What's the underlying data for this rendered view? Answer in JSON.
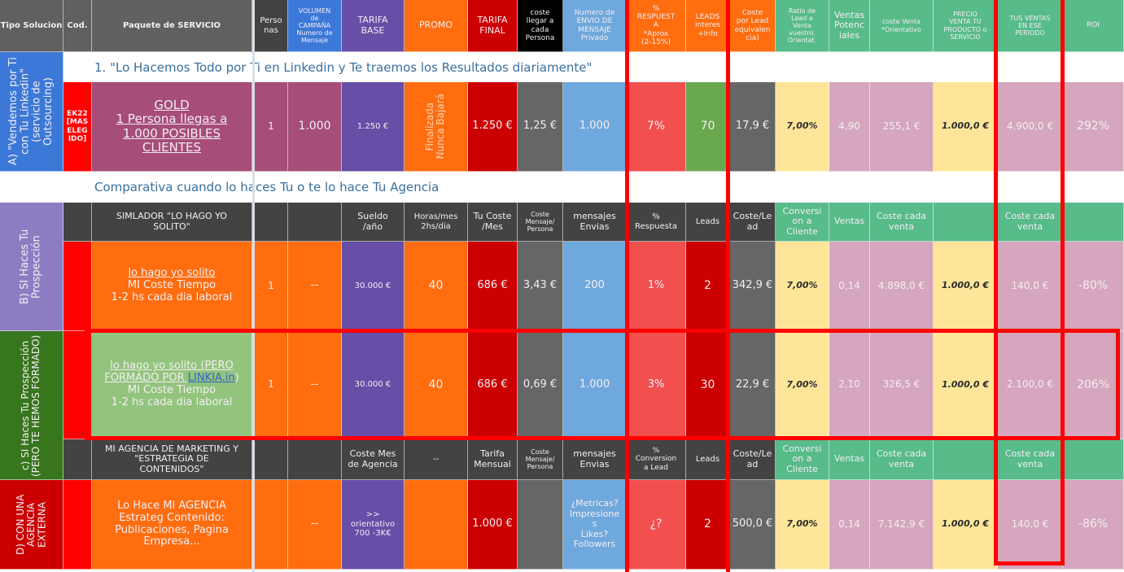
{
  "header": {
    "tipo_solucion": "Tipo Solucion",
    "cod": "Cod.",
    "paquete": "Paquete de SERVICIO",
    "personas": "Perso\nnas",
    "volumen": "VOLUMEN\nde\nCAMPAÑA\nNumero de\nMensaje",
    "tarifa_base": "TARIFA\nBASE",
    "promo": "PROMO",
    "tarifa_final": "TARIFA\nFINAL",
    "coste_llegar": "coste\nllegar a\ncada\nPersona",
    "numero_envio": "Numero de\nENVIO DE\nMENSAJE\nPrivado",
    "respuesta": "%\nRESPUEST\nA\n*Aprox\n(2-15%)",
    "leads": "LEADS\ninteres\n+Info",
    "coste_lead": "Coste\npor Lead\nequivalen\ncia)",
    "ratio": "Ratio de\nLead a\nVenta\nvuestro.\nOrientat.",
    "ventas_pot": "Ventas\nPotenc\niales",
    "coste_venta": "coste Venta\n*Orientativo",
    "precio_venta": "PRECIO\nVENTA TU\nPRODUCTO o\nSERVICIO",
    "tus_ventas": "TUS VENTAS\nEN ESE\nPERIODO",
    "roi": "ROI"
  },
  "section_a": {
    "label": "A) \"Vendemos por Ti con Tu Linkedin\" (servicio de Outsourcing)",
    "banner": "1. \"Lo Hacemos Todo por  Ti en Linkedin y Te traemos los Resultados diariamente\"",
    "row": {
      "cod": "EK22\n[MAS\nELEG\nIDO]",
      "paquete_title": "GOLD",
      "paquete_text": "1 Persona llegas a\n1.000 POSIBLES\nCLIENTES",
      "personas": "1",
      "volumen": "1.000",
      "tarifa_base": "1.250 €",
      "promo": "Finalizada\nNunca Bajará",
      "tarifa_final": "1.250 €",
      "coste_llegar": "1,25 €",
      "numero_envio": "1.000",
      "respuesta": "7%",
      "leads": "70",
      "coste_lead": "17,9 €",
      "ratio": "7,00%",
      "ventas_pot": "4,90",
      "coste_venta": "255,1 €",
      "precio_venta": "1.000,0 €",
      "tus_ventas": "4.900,0 €",
      "roi": "292%"
    }
  },
  "comparativa_banner": "Comparativa cuando lo haces Tu o te lo hace Tu Agencia",
  "section_b": {
    "label": "B) SI Haces Tu Prospección",
    "subheader": {
      "paquete": "SIMLADOR \"LO HAGO YO\nSOLITO\"",
      "sueldo": "Sueldo\n/año",
      "horas": "Horas/mes\n2hs/dia",
      "tu_coste": "Tu Coste\n/Mes",
      "coste_mensaje": "Coste\nMensaje/\nPersona",
      "mensajes": "mensajes\nEnvias",
      "respuesta": "%\nRespuesta",
      "leads": "Leads",
      "coste_lead": "Coste/Le\nad",
      "conversion": "Conversi\non a\nCliente",
      "ventas": "Ventas",
      "coste_cada_venta": "Coste cada\nventa",
      "coste_cada_venta_2": "Coste cada\nventa"
    },
    "row": {
      "paquete_title": "lo hago yo solito",
      "paquete_text": "MI Coste Tiempo\n1-2 hs cada dia laboral",
      "personas": "1",
      "volumen": "--",
      "sueldo": "30.000 €",
      "horas": "40",
      "tu_coste": "686 €",
      "coste_mensaje": "3,43 €",
      "mensajes": "200",
      "respuesta": "1%",
      "leads": "2",
      "coste_lead": "342,9 €",
      "conversion": "7,00%",
      "ventas": "0,14",
      "coste_venta": "4.898,0 €",
      "precio_venta": "1.000,0 €",
      "tus_ventas": "140,0 €",
      "roi": "-80%"
    }
  },
  "section_c": {
    "label": "c) SI Haces Tu Prospección (PERO TE HEMOS FORMADO)",
    "row": {
      "paquete_title_a": "lo hago yo solito (PERO",
      "paquete_title_b": "FORMADO POR ",
      "paquete_link": "LINKIA.in",
      "paquete_title_c": ")",
      "paquete_text": "MI Coste Tiempo\n1-2 hs cada dia laboral",
      "personas": "1",
      "volumen": "--",
      "sueldo": "30.000 €",
      "horas": "40",
      "tu_coste": "686 €",
      "coste_mensaje": "0,69 €",
      "mensajes": "1.000",
      "respuesta": "3%",
      "leads": "30",
      "coste_lead": "22,9 €",
      "conversion": "7,00%",
      "ventas": "2,10",
      "coste_venta": "326,5 €",
      "precio_venta": "1.000,0 €",
      "tus_ventas": "2.100,0 €",
      "roi": "206%"
    }
  },
  "section_d": {
    "label": "D) CON UNA AGENCIA EXTERNA",
    "subheader": {
      "paquete": "MI AGENCIA DE MARKETING Y\n\"ESTRATEGIA DE\nCONTENIDOS\"",
      "coste_mes": "Coste Mes\nde Agencia",
      "dash": "--",
      "tarifa": "Tarifa\nMensual",
      "coste_mensaje": "Coste\nMensaje/\nPersona",
      "mensajes": "mensajes\nEnvias",
      "conversion_lead": "%\nConversion\na Lead",
      "leads": "Leads",
      "coste_lead": "Coste/Le\nad",
      "conversion": "Conversi\non a\nCliente",
      "ventas": "Ventas",
      "coste_cada_venta": "Coste cada\nventa",
      "coste_cada_venta_2": "Coste cada\nventa"
    },
    "row": {
      "paquete_text": "Lo Hace MI AGENCIA\nEstrateg Contenido:\nPublicaciones, Pagina\nEmpresa...",
      "volumen": "--",
      "coste_mes": ">>\norientativo\n700 -3K€",
      "tarifa": "1.000 €",
      "mensajes": "¿Metricas?\nImpresione\ns\nLikes?\nFollowers",
      "conversion_lead": "¿?",
      "leads": "2",
      "coste_lead": "500,0 €",
      "conversion": "7,00%",
      "ventas": "0,14",
      "coste_venta": "7.142,9 €",
      "precio_venta": "1.000,0 €",
      "tus_ventas": "140,0 €",
      "roi": "-86%"
    }
  },
  "colors": {
    "header_gray": "#606060",
    "dark_gray": "#434343",
    "blue": "#3c78d8",
    "purple": "#674ea7",
    "orange": "#ff6d0f",
    "red": "#cc0000",
    "bright_red": "#ff0000",
    "black": "#000000",
    "light_blue": "#6fa8dc",
    "salmon": "#f24f4f",
    "green": "#6aa84f",
    "mint": "#57bb8a",
    "yellow": "#ffe599",
    "pink": "#d5a6bd",
    "magenta": "#a64d79",
    "lavender": "#8e7cc3",
    "dark_green": "#38761d",
    "light_green": "#93c47d",
    "highlight": "#ff0000"
  }
}
